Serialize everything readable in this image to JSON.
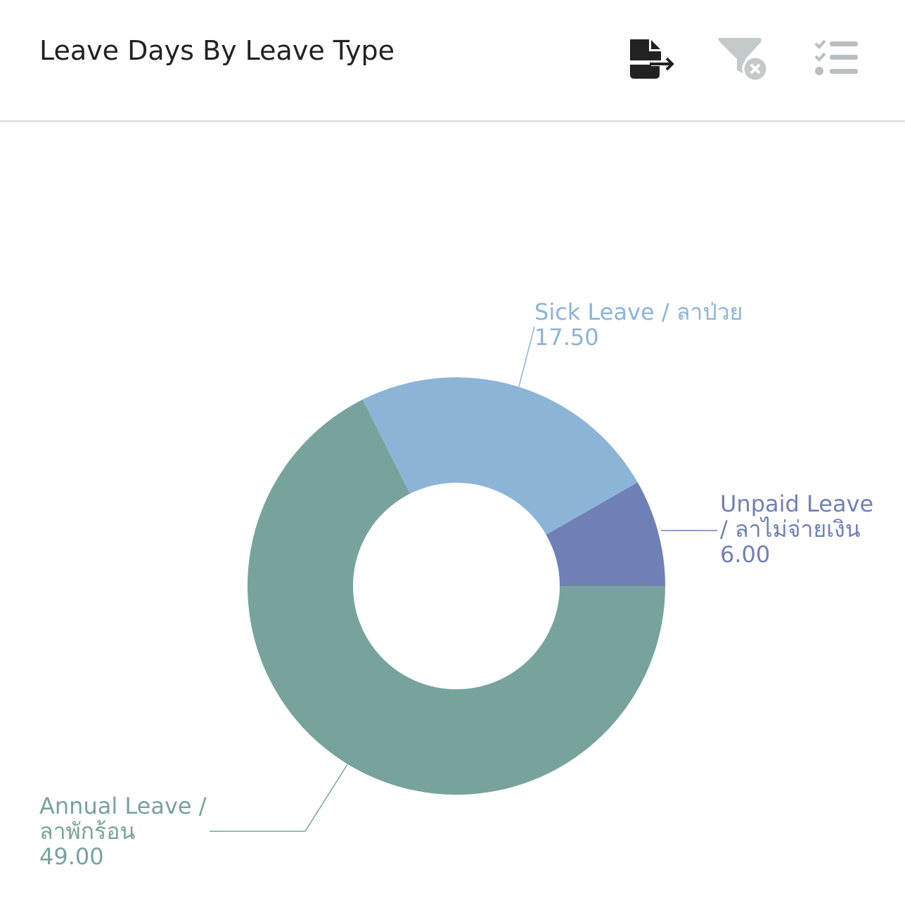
{
  "header": {
    "title": "Leave Days By Leave Type",
    "icons": {
      "export": "export-file-icon",
      "clear_filter": "filter-clear-icon",
      "list": "checklist-icon"
    }
  },
  "chart_data": {
    "type": "pie",
    "variant": "donut",
    "title": "Leave Days By Leave Type",
    "slices": [
      {
        "name": "Unpaid Leave / ลาไม่จ่ายเงิน",
        "label_lines": [
          "Unpaid Leave",
          "/ ลาไม่จ่ายเงิน"
        ],
        "value": 6.0,
        "value_label": "6.00",
        "color": "#6f80b7"
      },
      {
        "name": "Sick Leave / ลาป่วย",
        "label_lines": [
          "Sick Leave / ลาป่วย"
        ],
        "value": 17.5,
        "value_label": "17.50",
        "color": "#8bb4d7"
      },
      {
        "name": "Annual Leave / ลาพักร้อน",
        "label_lines": [
          "Annual Leave /",
          "ลาพักร้อน"
        ],
        "value": 49.0,
        "value_label": "49.00",
        "color": "#77a39c"
      }
    ]
  }
}
